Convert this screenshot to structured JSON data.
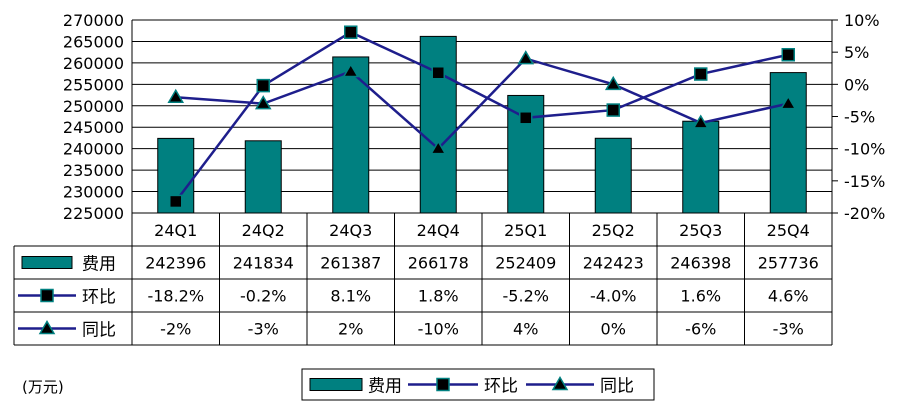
{
  "chart_data": {
    "type": "bar",
    "categories": [
      "24Q1",
      "24Q2",
      "24Q3",
      "24Q4",
      "25Q1",
      "25Q2",
      "25Q3",
      "25Q4"
    ],
    "unit_label": "(万元)",
    "y_left": {
      "range": [
        225000,
        270000
      ],
      "ticks": [
        "225000",
        "230000",
        "235000",
        "240000",
        "245000",
        "250000",
        "255000",
        "260000",
        "265000",
        "270000"
      ]
    },
    "y_right": {
      "range": [
        -20,
        10
      ],
      "ticks": [
        "-20%",
        "-15%",
        "-10%",
        "-5%",
        "0%",
        "5%",
        "10%"
      ]
    },
    "series": [
      {
        "name": "费用",
        "kind": "bar",
        "axis": "left",
        "values": [
          242396,
          241834,
          261387,
          266178,
          252409,
          242423,
          246398,
          257736
        ],
        "labels": [
          "242396",
          "241834",
          "261387",
          "266178",
          "252409",
          "242423",
          "246398",
          "257736"
        ]
      },
      {
        "name": "环比",
        "kind": "line",
        "marker": "square",
        "axis": "right",
        "values": [
          -18.2,
          -0.2,
          8.1,
          1.8,
          -5.2,
          -4.0,
          1.6,
          4.6
        ],
        "labels": [
          "-18.2%",
          "-0.2%",
          "8.1%",
          "1.8%",
          "-5.2%",
          "-4.0%",
          "1.6%",
          "4.6%"
        ]
      },
      {
        "name": "同比",
        "kind": "line",
        "marker": "triangle",
        "axis": "right",
        "values": [
          -2,
          -3,
          2,
          -10,
          4,
          0,
          -6,
          -3
        ],
        "labels": [
          "-2%",
          "-3%",
          "2%",
          "-10%",
          "4%",
          "0%",
          "-6%",
          "-3%"
        ]
      }
    ],
    "legend_position": "bottom-center",
    "grid": true,
    "colors": {
      "bar": "#008080",
      "line": "#1e1e8c",
      "marker": "#000000"
    }
  }
}
